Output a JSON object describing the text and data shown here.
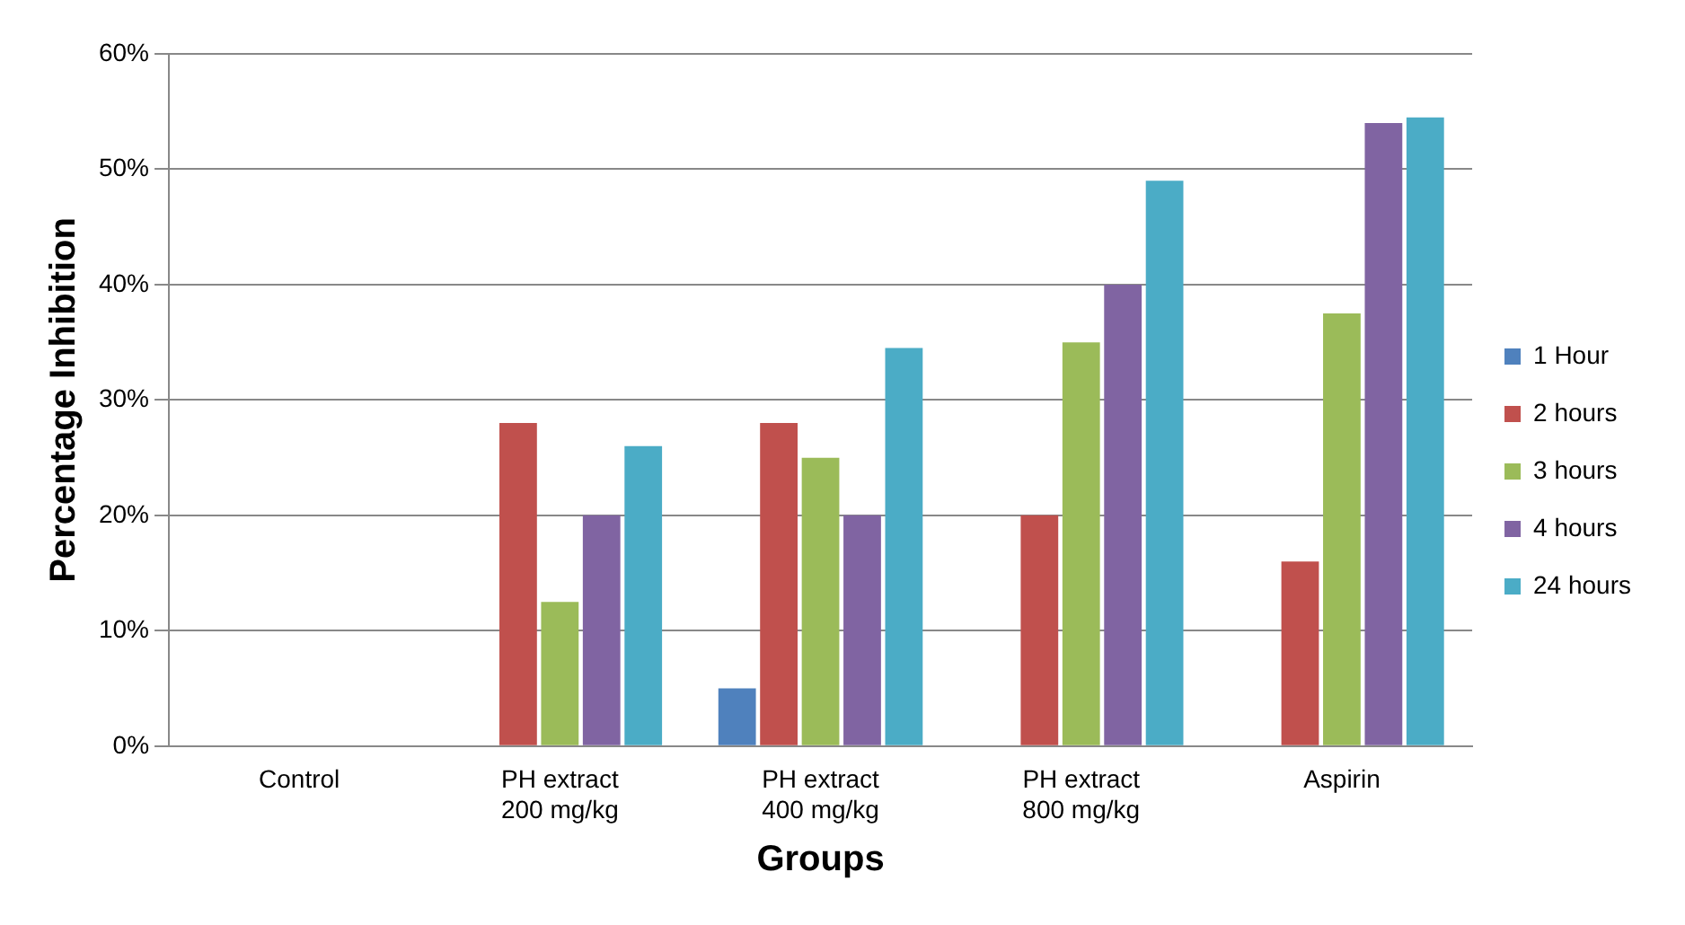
{
  "chart_data": {
    "type": "bar",
    "xlabel": "Groups",
    "ylabel": "Percentage Inhibition",
    "categories": [
      "Control",
      "PH extract\n200 mg/kg",
      "PH extract\n400 mg/kg",
      "PH extract\n800 mg/kg",
      "Aspirin"
    ],
    "series": [
      {
        "name": "1 Hour",
        "color": "#4f81bd",
        "values": [
          0,
          0,
          5,
          0,
          0
        ]
      },
      {
        "name": "2 hours",
        "color": "#c0504d",
        "values": [
          0,
          28,
          28,
          20,
          16
        ]
      },
      {
        "name": "3 hours",
        "color": "#9bbb59",
        "values": [
          0,
          12.5,
          25,
          35,
          37.5
        ]
      },
      {
        "name": "4 hours",
        "color": "#8064a2",
        "values": [
          0,
          20,
          20,
          40,
          54
        ]
      },
      {
        "name": "24 hours",
        "color": "#4bacc6",
        "values": [
          0,
          26,
          34.5,
          49,
          54.5
        ]
      }
    ],
    "ylim": [
      0,
      60
    ],
    "yticks": [
      {
        "value": 0,
        "label": "0%"
      },
      {
        "value": 10,
        "label": "10%"
      },
      {
        "value": 20,
        "label": "20%"
      },
      {
        "value": 30,
        "label": "30%"
      },
      {
        "value": 40,
        "label": "40%"
      },
      {
        "value": 50,
        "label": "50%"
      },
      {
        "value": 60,
        "label": "60%"
      }
    ],
    "grid": "y",
    "legend": "right"
  }
}
